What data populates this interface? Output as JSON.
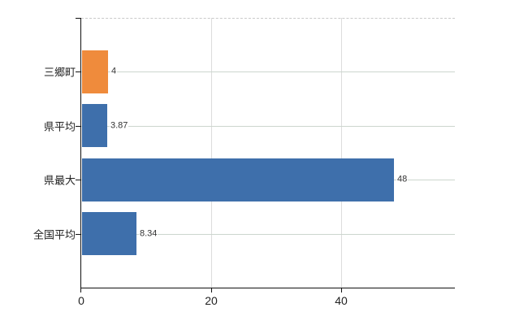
{
  "chart_data": {
    "type": "bar",
    "orientation": "horizontal",
    "title": "",
    "xlabel": "",
    "ylabel": "",
    "categories": [
      "三郷町",
      "県平均",
      "県最大",
      "全国平均"
    ],
    "values": [
      4,
      3.87,
      48,
      8.34
    ],
    "value_labels": [
      "4",
      "3.87",
      "48",
      "8.34"
    ],
    "bar_colors": [
      "#ef8b3c",
      "#3e6fab",
      "#3e6fab",
      "#3e6fab"
    ],
    "x_ticks": [
      0,
      20,
      40
    ],
    "x_tick_labels": [
      "0",
      "20",
      "40"
    ],
    "xlim": [
      0,
      57.5
    ],
    "grid": true,
    "legend": false
  },
  "colors": {
    "bar_orange": "#ef8b3c",
    "bar_blue": "#3e6fab",
    "gridline_horizontal": "#ccd6ce",
    "gridline_vertical": "#dcdcdc",
    "top_border": "#c9c9c9",
    "axis": "#111111",
    "label_text": "#222222",
    "value_text": "#333333",
    "background": "#ffffff"
  }
}
